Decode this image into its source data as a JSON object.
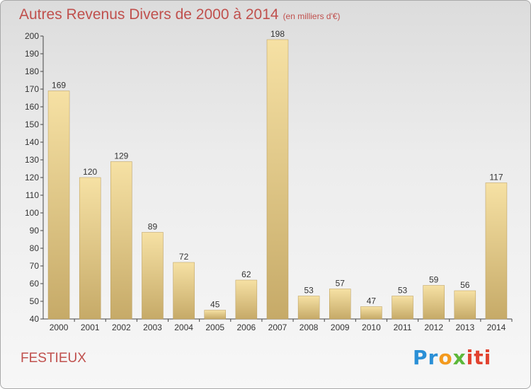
{
  "title": "Autres Revenus Divers de 2000 à 2014",
  "subtitle": "(en milliers d'€)",
  "location": "FESTIEUX",
  "logo": {
    "part1": "Pr",
    "part2": "o",
    "part3": "x",
    "part4": "iti"
  },
  "colors": {
    "bar_light": "#f5dfa0",
    "bar_dark": "#c8ad6b",
    "title": "#c0504d"
  },
  "chart_data": {
    "type": "bar",
    "title": "Autres Revenus Divers de 2000 à 2014",
    "subtitle": "(en milliers d'€)",
    "xlabel": "",
    "ylabel": "",
    "categories": [
      "2000",
      "2001",
      "2002",
      "2003",
      "2004",
      "2005",
      "2006",
      "2007",
      "2008",
      "2009",
      "2010",
      "2011",
      "2012",
      "2013",
      "2014"
    ],
    "values": [
      169,
      120,
      129,
      89,
      72,
      45,
      62,
      198,
      53,
      57,
      47,
      53,
      59,
      56,
      117
    ],
    "ylim": [
      40,
      200
    ],
    "yticks": [
      40,
      50,
      60,
      70,
      80,
      90,
      100,
      110,
      120,
      130,
      140,
      150,
      160,
      170,
      180,
      190,
      200
    ],
    "grid": false,
    "legend": "none"
  }
}
